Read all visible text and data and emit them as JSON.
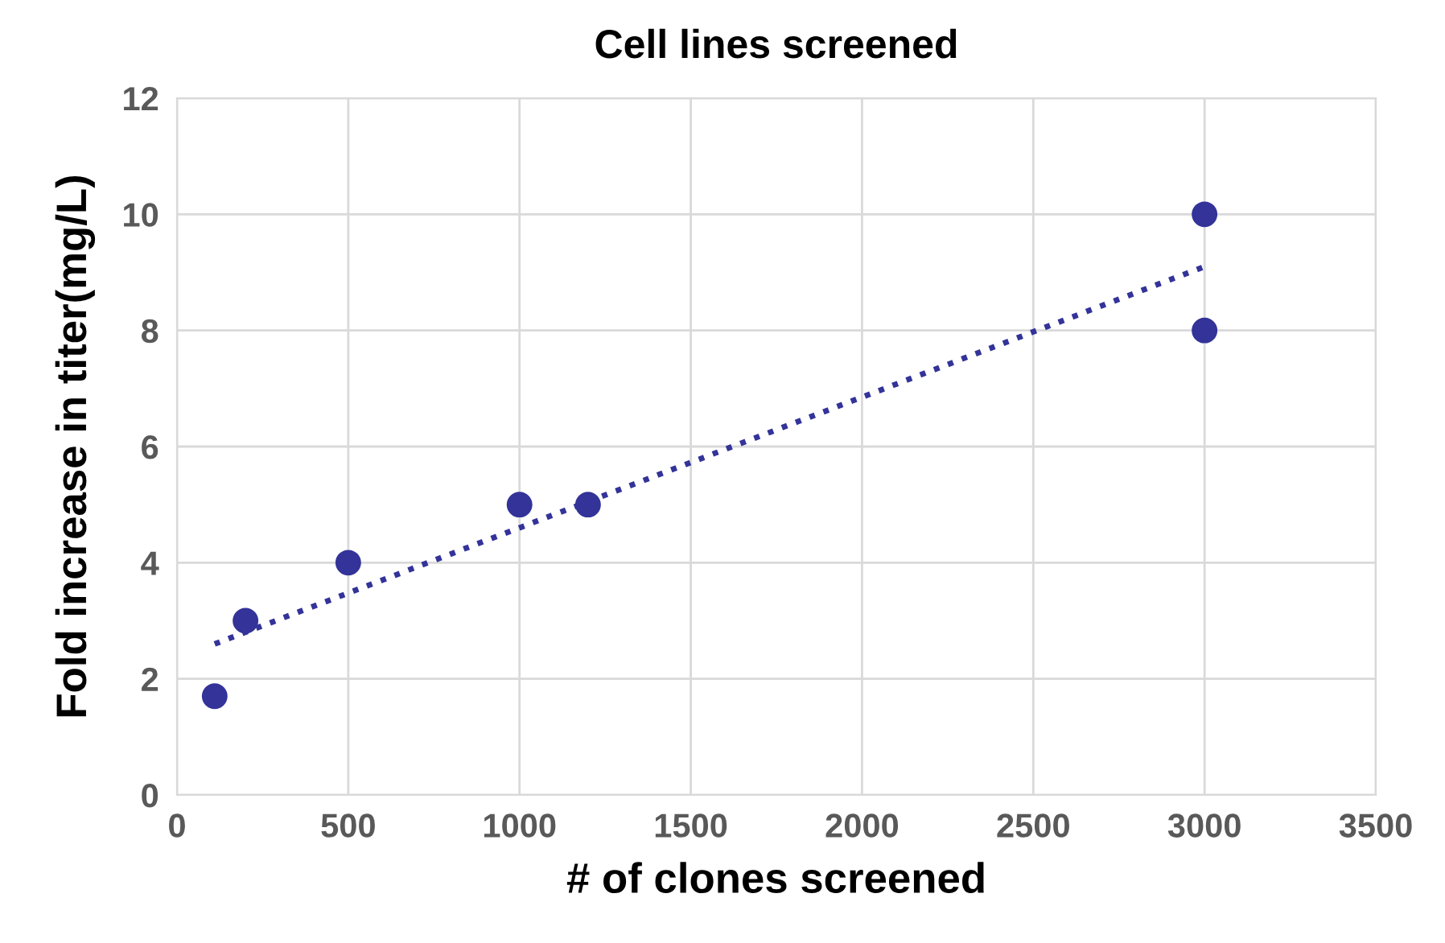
{
  "chart_data": {
    "type": "scatter",
    "title": "Cell lines screened",
    "xlabel": "# of clones screened",
    "ylabel": "Fold increase in titer(mg/L)",
    "series": [
      {
        "color": "#333399",
        "x": [
          110,
          200,
          500,
          1000,
          1200,
          3000,
          3000
        ],
        "values": [
          1.7,
          3,
          4,
          5,
          5,
          10,
          8
        ],
        "marker": "circle"
      },
      {
        "type": "line",
        "color": "#333399",
        "x": [
          110,
          3000
        ],
        "values": [
          2.6,
          9.1
        ],
        "line_style": "dotted",
        "marker": "none"
      }
    ],
    "xlim": [
      0,
      3500
    ],
    "xticks": [
      0,
      500,
      1000,
      1500,
      2000,
      2500,
      3000,
      3500
    ],
    "ylim": [
      0,
      12
    ],
    "yticks": [
      0,
      2,
      4,
      6,
      8,
      10,
      12
    ],
    "grid": true,
    "legend": false
  }
}
